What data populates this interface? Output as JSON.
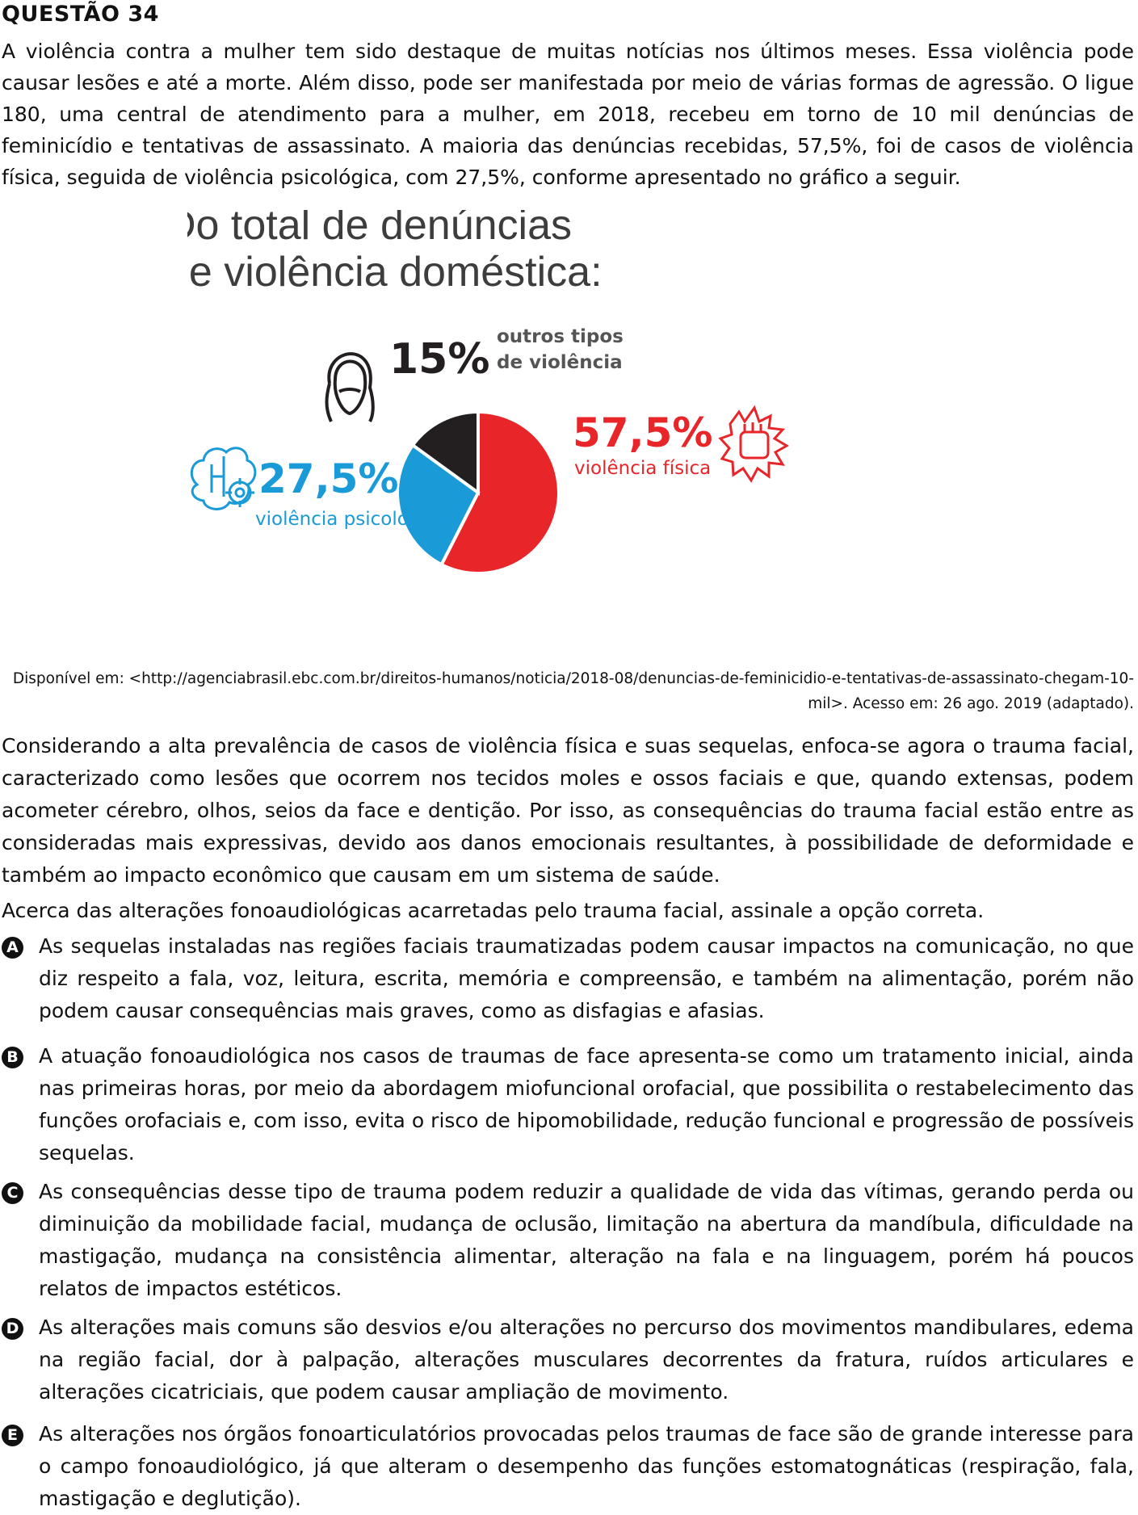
{
  "question": {
    "title": "QUESTÃO 34",
    "intro": "A violência contra a mulher tem sido destaque de muitas notícias nos últimos meses. Essa violência pode causar lesões e até a morte. Além disso, pode ser manifestada por meio de várias formas de agressão. O ligue 180, uma central de atendimento para a mulher, em 2018, recebeu em torno de 10 mil denúncias de feminicídio e tentativas de assassinato. A maioria das denúncias recebidas, 57,5%, foi de casos de violência física, seguida de violência psicológica, com 27,5%, conforme apresentado no gráfico a seguir.",
    "source": "Disponível em: <http://agenciabrasil.ebc.com.br/direitos-humanos/noticia/2018-08/denuncias-de-feminicidio-e-tentativas-de-assassinato-chegam-10-mil>. Acesso em: 26 ago. 2019 (adaptado).",
    "context": "Considerando a alta prevalência de casos de violência física e suas sequelas, enfoca-se agora o trauma facial, caracterizado como lesões que ocorrem nos tecidos moles e ossos faciais e que, quando extensas, podem acometer cérebro, olhos, seios da face e dentição. Por isso, as consequências do trauma facial estão entre as consideradas mais expressivas, devido aos danos emocionais resultantes, à possibilidade de deformidade e também ao impacto econômico que causam em um sistema de saúde.",
    "prompt": "Acerca das alterações fonoaudiológicas acarretadas pelo trauma facial, assinale a opção correta."
  },
  "options": [
    {
      "letter": "A",
      "text": "As sequelas instaladas nas regiões faciais traumatizadas podem causar impactos na comunicação, no que diz respeito a fala, voz, leitura, escrita, memória e compreensão, e também na alimentação, porém não podem causar consequências mais graves, como as disfagias e afasias."
    },
    {
      "letter": "B",
      "text": "A atuação fonoaudiológica nos casos de traumas de face apresenta-se como um tratamento inicial, ainda nas primeiras horas, por meio da abordagem miofuncional orofacial, que possibilita o restabelecimento das funções orofaciais e, com isso, evita o risco de hipomobilidade, redução funcional e progressão de possíveis sequelas."
    },
    {
      "letter": "C",
      "text": "As consequências desse tipo de trauma podem reduzir a qualidade de vida das vítimas, gerando perda ou diminuição da mobilidade facial, mudança de oclusão, limitação na abertura da mandíbula, dificuldade na mastigação, mudança na consistência alimentar, alteração na fala e na linguagem, porém há poucos relatos de impactos estéticos."
    },
    {
      "letter": "D",
      "text": "As alterações mais comuns são desvios e/ou alterações no percurso dos movimentos mandibulares, edema na região facial, dor à palpação, alterações musculares decorrentes da fratura, ruídos articulares e alterações cicatriciais, que podem causar ampliação de movimento."
    },
    {
      "letter": "E",
      "text": "As alterações nos órgãos fonoarticulatórios provocadas pelos traumas de face são de grande interesse para o campo fonoaudiológico, já que alteram o desempenho das funções estomatognáticas (respiração, fala, mastigação e deglutição)."
    }
  ],
  "chart_data": {
    "type": "pie",
    "title": "Do total de denúncias de violência doméstica:",
    "title_lines": [
      "Do total de denúncias",
      "de violência doméstica:"
    ],
    "slices": [
      {
        "label_value": "57,5%",
        "label": "violência física",
        "value": 57.5,
        "color": "#e8262a",
        "icon": "fist-burst-icon"
      },
      {
        "label_value": "27,5%",
        "label": "violência psicológica",
        "value": 27.5,
        "color": "#1a9ad6",
        "icon": "brain-target-icon"
      },
      {
        "label_value": "15%",
        "label": "outros tipos de violência",
        "label_lines": [
          "outros tipos",
          "de violência"
        ],
        "value": 15,
        "color": "#231f20",
        "icon": "woman-head-icon"
      }
    ]
  }
}
